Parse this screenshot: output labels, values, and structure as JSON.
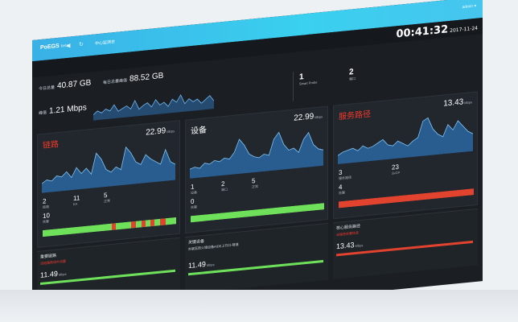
{
  "app": {
    "logo": "PoEGS",
    "logo_sub": "beta",
    "tab": "中心监测台",
    "user": "admin ▾",
    "back_icon": "arrow-left-icon",
    "refresh_icon": "refresh-icon"
  },
  "clock": {
    "time": "00:41:32",
    "date": "2017-11-24"
  },
  "summary": {
    "total_label": "今日总量",
    "total_value": "40.87 GB",
    "monthly_label": "每日总量峰值",
    "monthly_value": "88.52 GB",
    "rate_label": "峰值",
    "rate_value": "1.21 Mbps",
    "probe_count": "1",
    "probe_label": "Smart Probe",
    "port_count": "2",
    "port_label": "端口",
    "spark": [
      5,
      8,
      6,
      9,
      7,
      12,
      6,
      8,
      10,
      7,
      14,
      6,
      9,
      11,
      7,
      13,
      8,
      10,
      6,
      12,
      9,
      15,
      7,
      11,
      8,
      10,
      6,
      9,
      12,
      7
    ]
  },
  "panels": [
    {
      "title": "链路",
      "title_color": "#f0392b",
      "speed": "22.99",
      "unit": "Mbps",
      "chart": [
        6,
        8,
        7,
        10,
        9,
        12,
        8,
        14,
        10,
        13,
        9,
        22,
        18,
        11,
        9,
        12,
        10,
        24,
        20,
        14,
        12,
        18,
        15,
        13,
        11,
        20,
        12,
        10
      ],
      "stats": [
        {
          "v": "2",
          "l": "链路"
        },
        {
          "v": "11",
          "l": "EA"
        },
        {
          "v": "5",
          "l": "正常"
        }
      ],
      "stats2": [
        {
          "v": "10",
          "l": "告警"
        }
      ],
      "bar": [
        {
          "w": 52,
          "c": "#6ee05a"
        },
        {
          "w": 3,
          "c": "#e2432f"
        },
        {
          "w": 11,
          "c": "#6ee05a"
        },
        {
          "w": 4,
          "c": "#e2432f"
        },
        {
          "w": 4,
          "c": "#6ee05a"
        },
        {
          "w": 3,
          "c": "#e2432f"
        },
        {
          "w": 4,
          "c": "#6ee05a"
        },
        {
          "w": 3,
          "c": "#e2432f"
        },
        {
          "w": 4,
          "c": "#6ee05a"
        },
        {
          "w": 4,
          "c": "#e2432f"
        },
        {
          "w": 8,
          "c": "#6ee05a"
        }
      ],
      "sub_title": "重要链路",
      "sub_link": "该链路断线中流量",
      "sub_value": "11.49",
      "sub_unit": "Mbps",
      "sub_bar": "#6ee05a"
    },
    {
      "title": "设备",
      "title_color": "#ffffff",
      "speed": "22.99",
      "unit": "Mbps",
      "chart": [
        6,
        7,
        6,
        9,
        8,
        10,
        9,
        11,
        10,
        14,
        22,
        18,
        12,
        10,
        9,
        11,
        10,
        20,
        24,
        16,
        12,
        13,
        10,
        18,
        22,
        14,
        11,
        10
      ],
      "stats": [
        {
          "v": "1",
          "l": "设备"
        },
        {
          "v": "2",
          "l": "端口"
        },
        {
          "v": "5",
          "l": "正常"
        }
      ],
      "stats2": [
        {
          "v": "0",
          "l": "告警"
        }
      ],
      "bar": [
        {
          "w": 100,
          "c": "#6ee05a"
        }
      ],
      "sub_title": "关键设备",
      "sub_link": "外联区防火墙设备AIDE上行口-隧道",
      "sub_value": "11.49",
      "sub_unit": "Mbps",
      "sub_bar": "#6ee05a"
    },
    {
      "title": "服务路径",
      "title_color": "#f0392b",
      "speed": "13.43",
      "unit": "Mbps",
      "chart": [
        6,
        8,
        9,
        10,
        8,
        11,
        9,
        10,
        12,
        14,
        10,
        9,
        12,
        10,
        8,
        11,
        13,
        24,
        26,
        18,
        14,
        12,
        20,
        16,
        22,
        18,
        14,
        12
      ],
      "stats": [
        {
          "v": "3",
          "l": "服务路径"
        },
        {
          "v": "23",
          "l": "SvCP"
        }
      ],
      "stats2": [
        {
          "v": "4",
          "l": "告警"
        }
      ],
      "bar": [
        {
          "w": 100,
          "c": "#e2432f"
        }
      ],
      "sub_title": "核心服务路径",
      "sub_link": "该路径告警信息",
      "sub_value": "13.43",
      "sub_unit": "Mbps",
      "sub_bar": "#e2432f"
    }
  ]
}
